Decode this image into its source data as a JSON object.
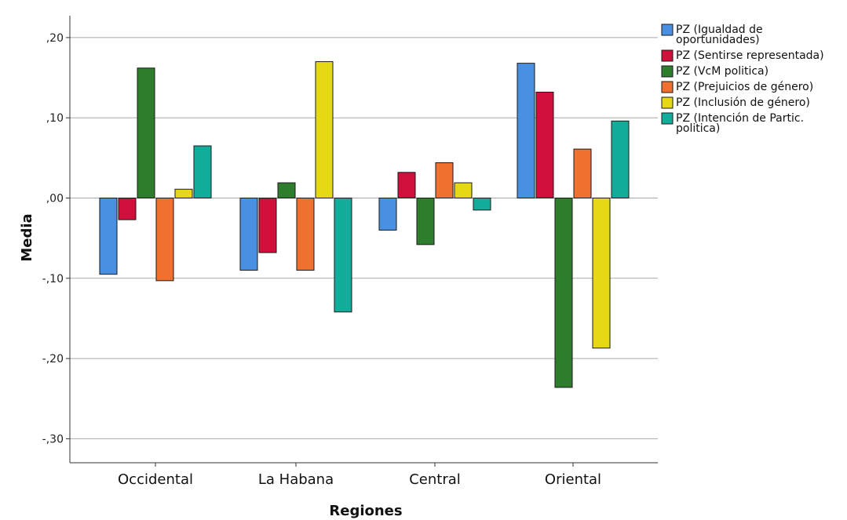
{
  "chart_data": {
    "type": "bar",
    "xlabel": "Regiones",
    "ylabel": "Media",
    "ylim": [
      -0.33,
      0.23
    ],
    "yticks": [
      0.2,
      0.1,
      0.0,
      -0.1,
      -0.2,
      -0.3
    ],
    "ytick_labels": [
      ",20",
      ",10",
      ",00",
      "-,10",
      "-,20",
      "-,30"
    ],
    "grid": true,
    "legend_position": "top-right",
    "categories": [
      "Occidental",
      "La Habana",
      "Central",
      "Oriental"
    ],
    "series": [
      {
        "name": "PZ (Igualdad de oportunidades)",
        "legend_lines": [
          "PZ (Igualdad de",
          "oportunidades)"
        ],
        "color": "#4a90e2",
        "values": [
          -0.095,
          -0.09,
          -0.04,
          0.168
        ]
      },
      {
        "name": "PZ (Sentirse representada)",
        "legend_lines": [
          "PZ (Sentirse representada)"
        ],
        "color": "#d0103a",
        "values": [
          -0.027,
          -0.068,
          0.032,
          0.132
        ]
      },
      {
        "name": "PZ (VcM politica)",
        "legend_lines": [
          "PZ (VcM politica)"
        ],
        "color": "#2d7d2d",
        "values": [
          0.162,
          0.019,
          -0.058,
          -0.236
        ]
      },
      {
        "name": "PZ (Prejuicios de género)",
        "legend_lines": [
          "PZ (Prejuicios de género)"
        ],
        "color": "#f07030",
        "values": [
          -0.103,
          -0.09,
          0.044,
          0.061
        ]
      },
      {
        "name": "PZ (Inclusión de género)",
        "legend_lines": [
          "PZ (Inclusión de género)"
        ],
        "color": "#e6d815",
        "values": [
          0.011,
          0.17,
          0.019,
          -0.187
        ]
      },
      {
        "name": "PZ (Intención de Partic. politica)",
        "legend_lines": [
          "PZ (Intención de Partic.",
          "politica)"
        ],
        "color": "#12ad9a",
        "values": [
          0.065,
          -0.142,
          -0.015,
          0.096
        ]
      }
    ]
  }
}
